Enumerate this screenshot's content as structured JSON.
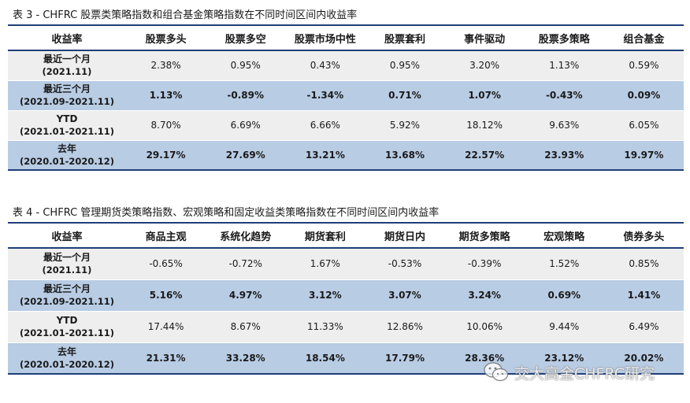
{
  "table3": {
    "caption": "表 3  - CHFRC 股票类策略指数和组合基金策略指数在不同时间区间内收益率",
    "headers": [
      "收益率",
      "股票多头",
      "股票多空",
      "股票市场中性",
      "股票套利",
      "事件驱动",
      "股票多策略",
      "组合基金"
    ],
    "rows": [
      {
        "label": "最近一个月",
        "sub": "(2021.11)",
        "values": [
          "2.38%",
          "0.95%",
          "0.43%",
          "0.95%",
          "3.20%",
          "1.13%",
          "0.59%"
        ]
      },
      {
        "label": "最近三个月",
        "sub": "(2021.09-2021.11)",
        "values": [
          "1.13%",
          "-0.89%",
          "-1.34%",
          "0.71%",
          "1.07%",
          "-0.43%",
          "0.09%"
        ]
      },
      {
        "label": "YTD",
        "sub": "(2021.01-2021.11)",
        "values": [
          "8.70%",
          "6.69%",
          "6.66%",
          "5.92%",
          "18.12%",
          "9.63%",
          "6.05%"
        ]
      },
      {
        "label": "去年",
        "sub": "(2020.01-2020.12)",
        "values": [
          "29.17%",
          "27.69%",
          "13.21%",
          "13.68%",
          "22.57%",
          "23.93%",
          "19.97%"
        ]
      }
    ]
  },
  "table4": {
    "caption": "表 4  - CHFRC 管理期货类策略指数、宏观策略和固定收益类策略指数在不同时间区间内收益率",
    "headers": [
      "收益率",
      "商品主观",
      "系统化趋势",
      "期货套利",
      "期货日内",
      "期货多策略",
      "宏观策略",
      "债券多头"
    ],
    "rows": [
      {
        "label": "最近一个月",
        "sub": "(2021.11)",
        "values": [
          "-0.65%",
          "-0.72%",
          "1.67%",
          "-0.53%",
          "-0.39%",
          "1.52%",
          "0.85%"
        ]
      },
      {
        "label": "最近三个月",
        "sub": "(2021.09-2021.11)",
        "values": [
          "5.16%",
          "4.97%",
          "3.12%",
          "3.07%",
          "3.24%",
          "0.69%",
          "1.41%"
        ]
      },
      {
        "label": "YTD",
        "sub": "(2021.01-2021.11)",
        "values": [
          "17.44%",
          "8.67%",
          "11.33%",
          "12.86%",
          "10.06%",
          "9.44%",
          "6.49%"
        ]
      },
      {
        "label": "去年",
        "sub": "(2020.01-2020.12)",
        "values": [
          "21.31%",
          "33.28%",
          "18.54%",
          "17.79%",
          "28.36%",
          "23.12%",
          "20.02%"
        ]
      }
    ]
  },
  "watermark": {
    "text": "交大高金CHFRC研究",
    "icon": "wechat-icon"
  }
}
